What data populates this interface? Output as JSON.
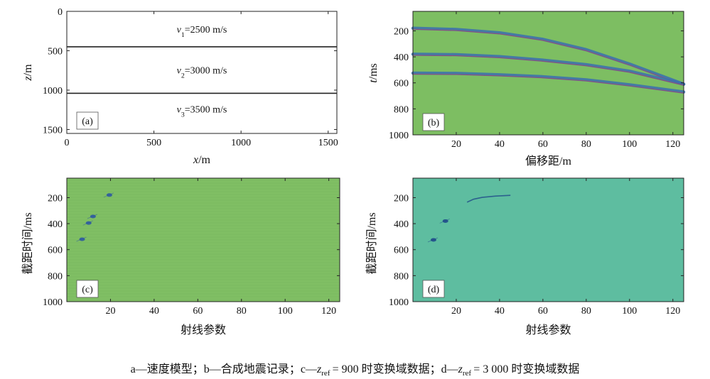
{
  "caption": {
    "a_label": "a—速度模型",
    "b_label": "b—合成地震记录",
    "c_prefix": "c—",
    "c_var": "z",
    "c_sub": "ref",
    "c_value": "= 900 时变换域数据",
    "d_prefix": "d—",
    "d_var": "z",
    "d_sub": "ref",
    "d_value": "= 3 000 时变换域数据",
    "sep": "；"
  },
  "chart_data": [
    {
      "id": "a",
      "type": "line",
      "panel_label": "(a)",
      "xlabel_var": "x",
      "xlabel_unit": "/m",
      "ylabel_var": "z",
      "ylabel_unit": "/m",
      "xlim": [
        0,
        1550
      ],
      "ylim": [
        1550,
        0
      ],
      "xticks": [
        0,
        500,
        1000,
        1500
      ],
      "yticks": [
        0,
        500,
        1000,
        1500
      ],
      "interfaces": [
        450,
        1040
      ],
      "layers": [
        {
          "var": "v",
          "sub": "1",
          "text": "=2500 m/s",
          "z": 225
        },
        {
          "var": "v",
          "sub": "2",
          "text": "=3000 m/s",
          "z": 745
        },
        {
          "var": "v",
          "sub": "3",
          "text": "=3500 m/s",
          "z": 1240
        }
      ],
      "line_color": "#222222"
    },
    {
      "id": "b",
      "type": "line",
      "panel_label": "(b)",
      "xlabel": "偏移距/m",
      "ylabel_var": "t",
      "ylabel_unit": "/ms",
      "xlim": [
        0,
        125
      ],
      "ylim": [
        1000,
        50
      ],
      "xticks": [
        20,
        40,
        60,
        80,
        100,
        120
      ],
      "yticks": [
        200,
        400,
        600,
        800,
        1000
      ],
      "background": "#7dbe62",
      "series": [
        {
          "x": [
            0,
            20,
            40,
            60,
            80,
            100,
            125
          ],
          "y": [
            180,
            189,
            215,
            265,
            345,
            455,
            610
          ]
        },
        {
          "x": [
            0,
            20,
            40,
            60,
            80,
            100,
            125
          ],
          "y": [
            380,
            383,
            398,
            425,
            460,
            510,
            610
          ]
        },
        {
          "x": [
            0,
            20,
            40,
            60,
            80,
            100,
            125
          ],
          "y": [
            525,
            527,
            538,
            553,
            577,
            615,
            670
          ]
        }
      ],
      "event_color": "#3a6fb0",
      "event_edge_color": "#b23a6e"
    },
    {
      "id": "c",
      "type": "heatmap",
      "panel_label": "(c)",
      "xlabel": "射线参数",
      "ylabel": "截距时间/ms",
      "xlim": [
        0,
        125
      ],
      "ylim": [
        1000,
        50
      ],
      "xticks": [
        20,
        40,
        60,
        80,
        100,
        120
      ],
      "yticks": [
        200,
        400,
        600,
        800,
        1000
      ],
      "background": "#80bf64",
      "events": [
        {
          "x": 19.5,
          "y": 180
        },
        {
          "x": 12,
          "y": 345
        },
        {
          "x": 10,
          "y": 395
        },
        {
          "x": 7,
          "y": 520
        }
      ],
      "event_color": "#2d5aa0"
    },
    {
      "id": "d",
      "type": "heatmap",
      "panel_label": "(d)",
      "xlabel": "射线参数",
      "ylabel": "截距时间/ms",
      "xlim": [
        0,
        125
      ],
      "ylim": [
        1000,
        50
      ],
      "xticks": [
        20,
        40,
        60,
        80,
        100,
        120
      ],
      "yticks": [
        200,
        400,
        600,
        800,
        1000
      ],
      "background": "#5ebda0",
      "streak": {
        "x": [
          25,
          28,
          32,
          38,
          45
        ],
        "y": [
          235,
          212,
          198,
          188,
          182
        ]
      },
      "events": [
        {
          "x": 15,
          "y": 380
        },
        {
          "x": 9.5,
          "y": 525
        }
      ],
      "event_color": "#1f4a8a"
    }
  ]
}
